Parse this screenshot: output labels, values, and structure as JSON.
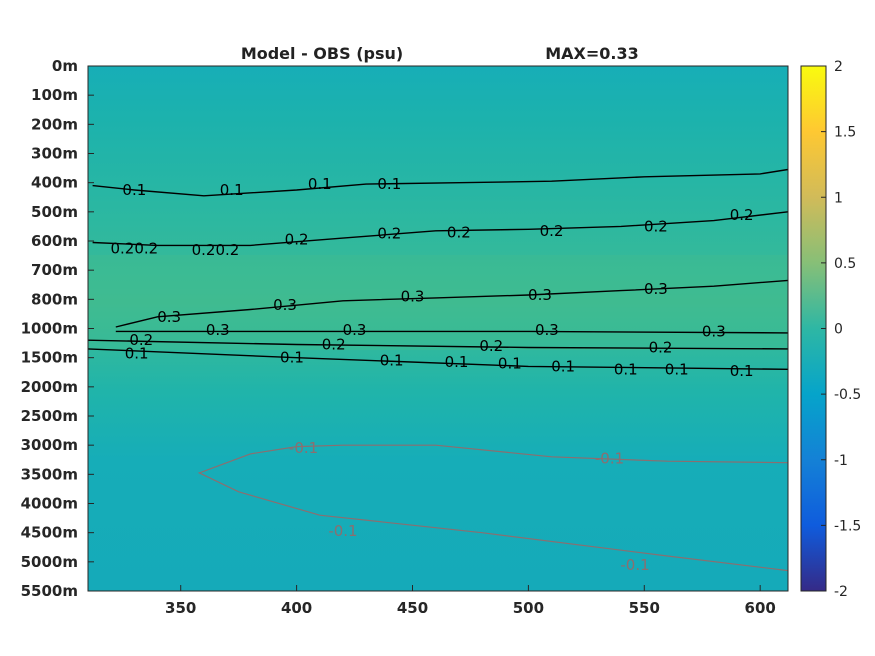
{
  "chart_data": {
    "type": "heatmap",
    "title_left": "Model - OBS (psu)",
    "title_right": "MAX=0.33",
    "colormap": "parula",
    "background_color": "#19b2b0",
    "xlim": [
      310,
      612
    ],
    "x_ticks": [
      350,
      400,
      450,
      500,
      550,
      600
    ],
    "x_tick_labels": [
      "350",
      "400",
      "450",
      "500",
      "550",
      "600"
    ],
    "y_tick_labels": [
      "0m",
      "100m",
      "200m",
      "300m",
      "400m",
      "500m",
      "600m",
      "700m",
      "800m",
      "1000m",
      "1500m",
      "2000m",
      "2500m",
      "3000m",
      "3500m",
      "4000m",
      "4500m",
      "5000m",
      "5500m"
    ],
    "colorbar": {
      "range": [
        -2,
        2
      ],
      "ticks": [
        2,
        1.5,
        1,
        0.5,
        0,
        -0.5,
        -1,
        -1.5,
        -2
      ],
      "tick_labels": [
        "2",
        "1.5",
        "1",
        "0.5",
        "0",
        "-0.5",
        "-1",
        "-1.5",
        "-2"
      ]
    },
    "contours": [
      {
        "level": 0.1,
        "color": "#000000",
        "x": [
          312,
          330,
          360,
          400,
          430,
          470,
          510,
          550,
          600,
          612
        ],
        "depth_index": [
          4.1,
          4.25,
          4.45,
          4.25,
          4.05,
          4.0,
          3.95,
          3.8,
          3.7,
          3.55
        ]
      },
      {
        "level": 0.2,
        "color": "#000000",
        "x": [
          312,
          340,
          380,
          420,
          460,
          500,
          540,
          580,
          612
        ],
        "depth_index": [
          6.05,
          6.15,
          6.15,
          5.9,
          5.65,
          5.6,
          5.5,
          5.3,
          5.0
        ]
      },
      {
        "level": 0.3,
        "color": "#000000",
        "x": [
          322,
          340,
          380,
          420,
          460,
          500,
          540,
          580,
          612
        ],
        "depth_index": [
          8.95,
          8.6,
          8.35,
          8.05,
          7.95,
          7.85,
          7.7,
          7.55,
          7.35
        ]
      },
      {
        "level": 0.3,
        "color": "#000000",
        "x": [
          322,
          400,
          500,
          612
        ],
        "depth_index": [
          9.1,
          9.1,
          9.1,
          9.15
        ]
      },
      {
        "level": 0.2,
        "color": "#000000",
        "x": [
          310,
          400,
          500,
          612
        ],
        "depth_index": [
          9.4,
          9.55,
          9.65,
          9.7
        ]
      },
      {
        "level": 0.1,
        "color": "#000000",
        "x": [
          310,
          400,
          500,
          612
        ],
        "depth_index": [
          9.7,
          10.0,
          10.3,
          10.4
        ]
      },
      {
        "level": -0.1,
        "color": "#8a6f70",
        "x": [
          612,
          560,
          510,
          460,
          420,
          400,
          380,
          358,
          375,
          410,
          480,
          560,
          612
        ],
        "depth_index": [
          13.6,
          13.55,
          13.4,
          13.0,
          13.0,
          13.05,
          13.3,
          13.95,
          14.6,
          15.4,
          16.0,
          16.8,
          17.3
        ]
      }
    ],
    "contour_labels": [
      {
        "text": "-0.1",
        "x": 403,
        "depth_index": 13.1,
        "color": "#8a6f70"
      },
      {
        "text": "-0.1",
        "x": 535,
        "depth_index": 13.45,
        "color": "#8a6f70"
      },
      {
        "text": "-0.1",
        "x": 420,
        "depth_index": 15.95,
        "color": "#8a6f70"
      },
      {
        "text": "-0.1",
        "x": 546,
        "depth_index": 17.1,
        "color": "#8a6f70"
      },
      {
        "text": "0.1",
        "x": 331,
        "depth_index": 9.85,
        "color": "#000000"
      },
      {
        "text": "0.1",
        "x": 398,
        "depth_index": 10.0,
        "color": "#000000"
      },
      {
        "text": "0.1",
        "x": 441,
        "depth_index": 10.1,
        "color": "#000000"
      },
      {
        "text": "0.1",
        "x": 469,
        "depth_index": 10.15,
        "color": "#000000"
      },
      {
        "text": "0.1",
        "x": 492,
        "depth_index": 10.2,
        "color": "#000000"
      },
      {
        "text": "0.1",
        "x": 515,
        "depth_index": 10.3,
        "color": "#000000"
      },
      {
        "text": "0.1",
        "x": 542,
        "depth_index": 10.4,
        "color": "#000000"
      },
      {
        "text": "0.1",
        "x": 564,
        "depth_index": 10.4,
        "color": "#000000"
      },
      {
        "text": "0.1",
        "x": 592,
        "depth_index": 10.45,
        "color": "#000000"
      },
      {
        "text": "0.2",
        "x": 333,
        "depth_index": 9.4,
        "color": "#000000"
      },
      {
        "text": "0.2",
        "x": 416,
        "depth_index": 9.55,
        "color": "#000000"
      },
      {
        "text": "0.2",
        "x": 484,
        "depth_index": 9.6,
        "color": "#000000"
      },
      {
        "text": "0.2",
        "x": 557,
        "depth_index": 9.65,
        "color": "#000000"
      },
      {
        "text": "0.3",
        "x": 366,
        "depth_index": 9.05,
        "color": "#000000"
      },
      {
        "text": "0.3",
        "x": 425,
        "depth_index": 9.05,
        "color": "#000000"
      },
      {
        "text": "0.3",
        "x": 508,
        "depth_index": 9.05,
        "color": "#000000"
      },
      {
        "text": "0.3",
        "x": 580,
        "depth_index": 9.1,
        "color": "#000000"
      },
      {
        "text": "0.20.2",
        "x": 330,
        "depth_index": 6.25,
        "color": "#000000"
      },
      {
        "text": "0.20.2",
        "x": 365,
        "depth_index": 6.3,
        "color": "#000000"
      },
      {
        "text": "0.2",
        "x": 400,
        "depth_index": 5.95,
        "color": "#000000"
      },
      {
        "text": "0.2",
        "x": 440,
        "depth_index": 5.75,
        "color": "#000000"
      },
      {
        "text": "0.2",
        "x": 470,
        "depth_index": 5.7,
        "color": "#000000"
      },
      {
        "text": "0.2",
        "x": 510,
        "depth_index": 5.65,
        "color": "#000000"
      },
      {
        "text": "0.2",
        "x": 555,
        "depth_index": 5.5,
        "color": "#000000"
      },
      {
        "text": "0.2",
        "x": 592,
        "depth_index": 5.1,
        "color": "#000000"
      },
      {
        "text": "0.1",
        "x": 330,
        "depth_index": 4.25,
        "color": "#000000"
      },
      {
        "text": "0.1",
        "x": 372,
        "depth_index": 4.25,
        "color": "#000000"
      },
      {
        "text": "0.1",
        "x": 410,
        "depth_index": 4.05,
        "color": "#000000"
      },
      {
        "text": "0.1",
        "x": 440,
        "depth_index": 4.05,
        "color": "#000000"
      },
      {
        "text": "0.3",
        "x": 345,
        "depth_index": 8.6,
        "color": "#000000"
      },
      {
        "text": "0.3",
        "x": 395,
        "depth_index": 8.2,
        "color": "#000000"
      },
      {
        "text": "0.3",
        "x": 450,
        "depth_index": 7.9,
        "color": "#000000"
      },
      {
        "text": "0.3",
        "x": 505,
        "depth_index": 7.85,
        "color": "#000000"
      },
      {
        "text": "0.3",
        "x": 555,
        "depth_index": 7.65,
        "color": "#000000"
      }
    ]
  }
}
